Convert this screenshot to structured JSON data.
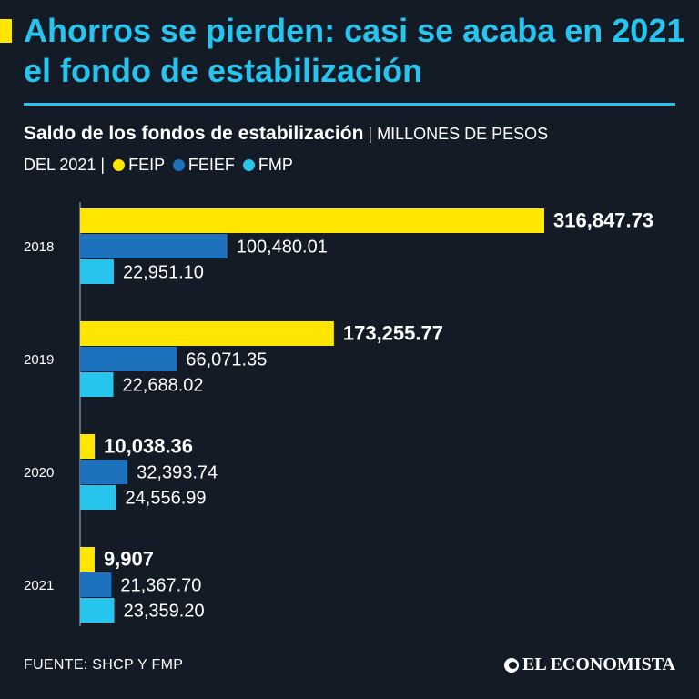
{
  "header": {
    "title": "Ahorros se pierden: casi se acaba en 2021 el fondo de estabilización"
  },
  "subtitle": {
    "main": "Saldo de los fondos de estabilización",
    "separator": "|",
    "unit_part1": "MILLONES DE PESOS",
    "unit_part2": "DEL 2021",
    "legend": [
      {
        "label": "FEIP",
        "color": "#ffe600"
      },
      {
        "label": "FEIEF",
        "color": "#1d71bd"
      },
      {
        "label": "FMP",
        "color": "#27c4ee"
      }
    ]
  },
  "chart_data": {
    "type": "bar",
    "orientation": "horizontal",
    "title": "Saldo de los fondos de estabilización",
    "units": "MILLONES DE PESOS DEL 2021",
    "categories": [
      "2018",
      "2019",
      "2020",
      "2021"
    ],
    "series": [
      {
        "name": "FEIP",
        "color": "#ffe600",
        "values": [
          316847.73,
          173255.77,
          10038.36,
          9907
        ],
        "labels": [
          "316,847.73",
          "173,255.77",
          "10,038.36",
          "9,907"
        ]
      },
      {
        "name": "FEIEF",
        "color": "#1d71bd",
        "values": [
          100480.01,
          66071.35,
          32393.74,
          21367.7
        ],
        "labels": [
          "100,480.01",
          "66,071.35",
          "32,393.74",
          "21,367.70"
        ]
      },
      {
        "name": "FMP",
        "color": "#27c4ee",
        "values": [
          22951.1,
          22688.02,
          24556.99,
          23359.2
        ],
        "labels": [
          "22,951.10",
          "22,688.02",
          "24,556.99",
          "23,359.20"
        ]
      }
    ],
    "xlim": [
      0,
      316847.73
    ]
  },
  "footer": {
    "source": "FUENTE: SHCP Y FMP",
    "brand": "EL ECONOMISTA"
  },
  "colors": {
    "background": "#131b26",
    "accent": "#27c4ee",
    "marker": "#ffe600"
  }
}
